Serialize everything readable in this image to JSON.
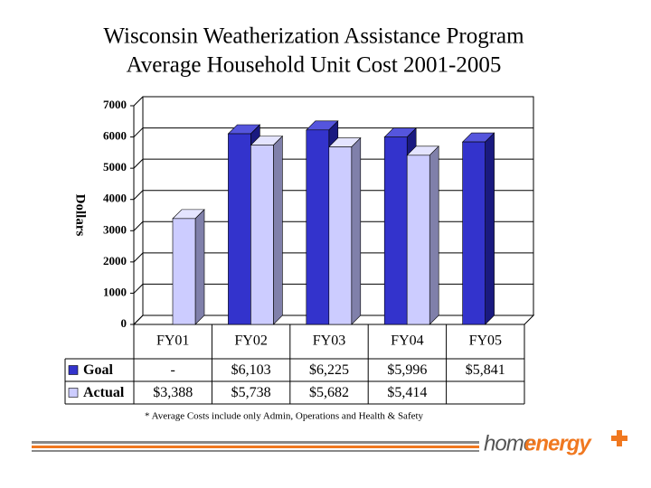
{
  "chart_data": {
    "type": "bar",
    "title": [
      "Wisconsin Weatherization Assistance Program",
      "Average Household Unit Cost 2001-2005"
    ],
    "ylabel": "Dollars",
    "categories": [
      "FY01",
      "FY02",
      "FY03",
      "FY04",
      "FY05"
    ],
    "series": [
      {
        "name": "Goal",
        "color": "#3333cc",
        "values": [
          null,
          6103,
          6225,
          5996,
          5841
        ],
        "value_labels": [
          "-",
          "$6,103",
          "$6,225",
          "$5,996",
          "$5,841"
        ]
      },
      {
        "name": "Actual",
        "color": "#ccccff",
        "values": [
          3388,
          5738,
          5682,
          5414,
          null
        ],
        "value_labels": [
          "$3,388",
          "$5,738",
          "$5,682",
          "$5,414",
          null
        ]
      }
    ],
    "ylim": [
      0,
      7000
    ],
    "yticks": [
      0,
      1000,
      2000,
      3000,
      4000,
      5000,
      6000,
      7000
    ],
    "grid": true,
    "footnote": "* Average Costs include only Admin, Operations and Health & Safety"
  },
  "logo": [
    "home",
    "energy"
  ]
}
